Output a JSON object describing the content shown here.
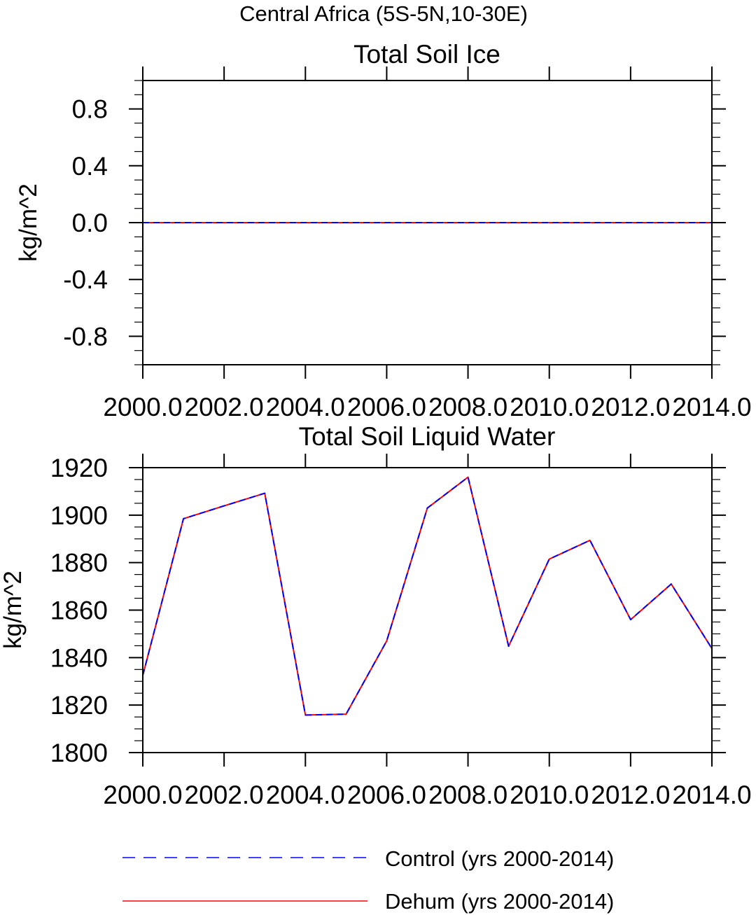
{
  "figure": {
    "title": "Central Africa (5S-5N,10-30E)"
  },
  "chart_data": [
    {
      "type": "line",
      "title": "Total Soil Ice",
      "xlabel": "",
      "ylabel": "kg/m^2",
      "xlim": [
        2000,
        2014
      ],
      "ylim": [
        -1.0,
        1.0
      ],
      "x_ticks": [
        2000,
        2002,
        2004,
        2006,
        2008,
        2010,
        2012,
        2014
      ],
      "x_tick_labels": [
        "2000.0",
        "2002.0",
        "2004.0",
        "2006.0",
        "2008.0",
        "2010.0",
        "2012.0",
        "2014.0"
      ],
      "y_ticks": [
        -0.8,
        -0.4,
        0.0,
        0.4,
        0.8
      ],
      "y_tick_labels": [
        "-0.8",
        "-0.4",
        "0.0",
        "0.4",
        "0.8"
      ],
      "grid": false,
      "x": [
        2000,
        2001,
        2002,
        2003,
        2004,
        2005,
        2006,
        2007,
        2008,
        2009,
        2010,
        2011,
        2012,
        2013,
        2014
      ],
      "series": [
        {
          "name": "Control (yrs 2000-2014)",
          "color": "#0000ff",
          "dash": "dashed",
          "values": [
            0,
            0,
            0,
            0,
            0,
            0,
            0,
            0,
            0,
            0,
            0,
            0,
            0,
            0,
            0
          ]
        },
        {
          "name": "Dehum (yrs 2000-2014)",
          "color": "#ff0000",
          "dash": "solid",
          "values": [
            0,
            0,
            0,
            0,
            0,
            0,
            0,
            0,
            0,
            0,
            0,
            0,
            0,
            0,
            0
          ]
        }
      ]
    },
    {
      "type": "line",
      "title": "Total Soil Liquid Water",
      "xlabel": "",
      "ylabel": "kg/m^2",
      "xlim": [
        2000,
        2014
      ],
      "ylim": [
        1800,
        1920
      ],
      "x_ticks": [
        2000,
        2002,
        2004,
        2006,
        2008,
        2010,
        2012,
        2014
      ],
      "x_tick_labels": [
        "2000.0",
        "2002.0",
        "2004.0",
        "2006.0",
        "2008.0",
        "2010.0",
        "2012.0",
        "2014.0"
      ],
      "y_ticks": [
        1800,
        1820,
        1840,
        1860,
        1880,
        1900,
        1920
      ],
      "y_tick_labels": [
        "1800",
        "1820",
        "1840",
        "1860",
        "1880",
        "1900",
        "1920"
      ],
      "grid": false,
      "x": [
        2000,
        2001,
        2002,
        2003,
        2004,
        2005,
        2006,
        2007,
        2008,
        2009,
        2010,
        2011,
        2012,
        2013,
        2014
      ],
      "series": [
        {
          "name": "Control (yrs 2000-2014)",
          "color": "#0000ff",
          "dash": "dashed",
          "values": [
            1832.5,
            1898.5,
            1903.9,
            1909.2,
            1815.8,
            1816.2,
            1847.0,
            1903.0,
            1916.0,
            1844.8,
            1881.5,
            1889.4,
            1856.0,
            1871.0,
            1843.8
          ]
        },
        {
          "name": "Dehum (yrs 2000-2014)",
          "color": "#ff0000",
          "dash": "solid",
          "values": [
            1832.5,
            1898.5,
            1903.9,
            1909.2,
            1815.8,
            1816.2,
            1847.0,
            1903.0,
            1916.0,
            1844.8,
            1881.5,
            1889.4,
            1856.0,
            1871.0,
            1843.8
          ]
        }
      ]
    }
  ],
  "legend": {
    "placement": "bottom",
    "items": [
      {
        "label": "Control (yrs 2000-2014)",
        "color": "#0000ff",
        "dash": "dashed"
      },
      {
        "label": "Dehum (yrs 2000-2014)",
        "color": "#ff0000",
        "dash": "solid"
      }
    ]
  }
}
